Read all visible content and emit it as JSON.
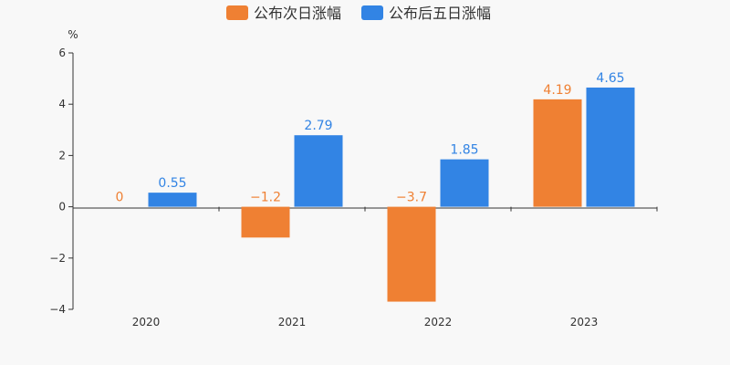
{
  "chart_data": {
    "type": "bar",
    "categories": [
      "2020",
      "2021",
      "2022",
      "2023"
    ],
    "series": [
      {
        "name": "公布次日涨幅",
        "color": "#ef8033",
        "values": [
          0,
          -1.2,
          -3.7,
          4.19
        ],
        "labels": [
          "0",
          "−1.2",
          "−3.7",
          "4.19"
        ]
      },
      {
        "name": "公布后五日涨幅",
        "color": "#3284e4",
        "values": [
          0.55,
          2.79,
          1.85,
          4.65
        ],
        "labels": [
          "0.55",
          "2.79",
          "1.85",
          "4.65"
        ]
      }
    ],
    "ylabel": "%",
    "ylim": [
      -4,
      6
    ],
    "yticks": [
      6,
      4,
      2,
      0,
      -2,
      -4
    ],
    "ytick_labels": [
      "6",
      "4",
      "2",
      "0",
      "−2",
      "−4"
    ],
    "grid": false,
    "legend": "top-center"
  }
}
